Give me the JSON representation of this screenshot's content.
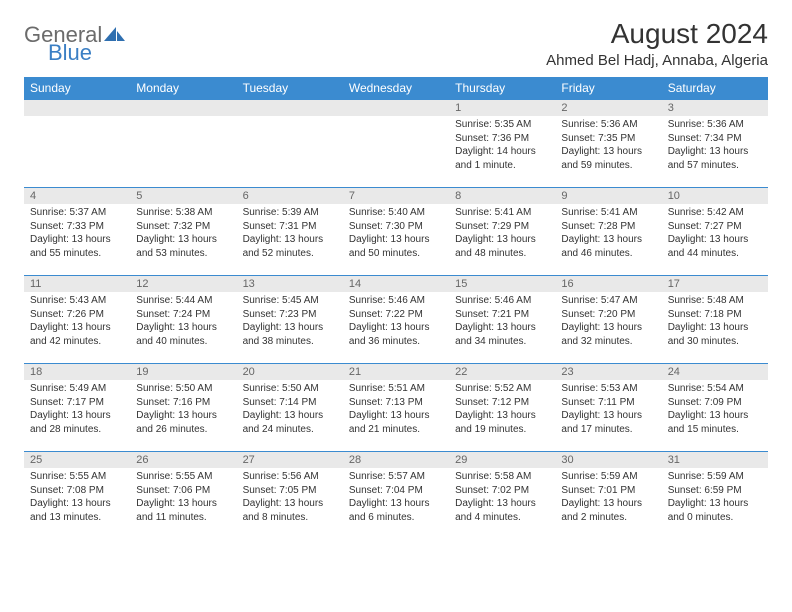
{
  "logo": {
    "text1": "General",
    "text2": "Blue"
  },
  "header": {
    "month_title": "August 2024",
    "location": "Ahmed Bel Hadj, Annaba, Algeria"
  },
  "colors": {
    "header_bg": "#3b8bd0",
    "header_text": "#ffffff",
    "daynum_bg": "#e9e9e9",
    "daynum_text": "#666666",
    "cell_border": "#3b8bd0",
    "logo_gray": "#6b6b6b",
    "logo_blue": "#3b7fc4"
  },
  "weekdays": [
    "Sunday",
    "Monday",
    "Tuesday",
    "Wednesday",
    "Thursday",
    "Friday",
    "Saturday"
  ],
  "days": [
    {
      "n": 1,
      "sunrise": "Sunrise: 5:35 AM",
      "sunset": "Sunset: 7:36 PM",
      "daylight": "Daylight: 14 hours and 1 minute."
    },
    {
      "n": 2,
      "sunrise": "Sunrise: 5:36 AM",
      "sunset": "Sunset: 7:35 PM",
      "daylight": "Daylight: 13 hours and 59 minutes."
    },
    {
      "n": 3,
      "sunrise": "Sunrise: 5:36 AM",
      "sunset": "Sunset: 7:34 PM",
      "daylight": "Daylight: 13 hours and 57 minutes."
    },
    {
      "n": 4,
      "sunrise": "Sunrise: 5:37 AM",
      "sunset": "Sunset: 7:33 PM",
      "daylight": "Daylight: 13 hours and 55 minutes."
    },
    {
      "n": 5,
      "sunrise": "Sunrise: 5:38 AM",
      "sunset": "Sunset: 7:32 PM",
      "daylight": "Daylight: 13 hours and 53 minutes."
    },
    {
      "n": 6,
      "sunrise": "Sunrise: 5:39 AM",
      "sunset": "Sunset: 7:31 PM",
      "daylight": "Daylight: 13 hours and 52 minutes."
    },
    {
      "n": 7,
      "sunrise": "Sunrise: 5:40 AM",
      "sunset": "Sunset: 7:30 PM",
      "daylight": "Daylight: 13 hours and 50 minutes."
    },
    {
      "n": 8,
      "sunrise": "Sunrise: 5:41 AM",
      "sunset": "Sunset: 7:29 PM",
      "daylight": "Daylight: 13 hours and 48 minutes."
    },
    {
      "n": 9,
      "sunrise": "Sunrise: 5:41 AM",
      "sunset": "Sunset: 7:28 PM",
      "daylight": "Daylight: 13 hours and 46 minutes."
    },
    {
      "n": 10,
      "sunrise": "Sunrise: 5:42 AM",
      "sunset": "Sunset: 7:27 PM",
      "daylight": "Daylight: 13 hours and 44 minutes."
    },
    {
      "n": 11,
      "sunrise": "Sunrise: 5:43 AM",
      "sunset": "Sunset: 7:26 PM",
      "daylight": "Daylight: 13 hours and 42 minutes."
    },
    {
      "n": 12,
      "sunrise": "Sunrise: 5:44 AM",
      "sunset": "Sunset: 7:24 PM",
      "daylight": "Daylight: 13 hours and 40 minutes."
    },
    {
      "n": 13,
      "sunrise": "Sunrise: 5:45 AM",
      "sunset": "Sunset: 7:23 PM",
      "daylight": "Daylight: 13 hours and 38 minutes."
    },
    {
      "n": 14,
      "sunrise": "Sunrise: 5:46 AM",
      "sunset": "Sunset: 7:22 PM",
      "daylight": "Daylight: 13 hours and 36 minutes."
    },
    {
      "n": 15,
      "sunrise": "Sunrise: 5:46 AM",
      "sunset": "Sunset: 7:21 PM",
      "daylight": "Daylight: 13 hours and 34 minutes."
    },
    {
      "n": 16,
      "sunrise": "Sunrise: 5:47 AM",
      "sunset": "Sunset: 7:20 PM",
      "daylight": "Daylight: 13 hours and 32 minutes."
    },
    {
      "n": 17,
      "sunrise": "Sunrise: 5:48 AM",
      "sunset": "Sunset: 7:18 PM",
      "daylight": "Daylight: 13 hours and 30 minutes."
    },
    {
      "n": 18,
      "sunrise": "Sunrise: 5:49 AM",
      "sunset": "Sunset: 7:17 PM",
      "daylight": "Daylight: 13 hours and 28 minutes."
    },
    {
      "n": 19,
      "sunrise": "Sunrise: 5:50 AM",
      "sunset": "Sunset: 7:16 PM",
      "daylight": "Daylight: 13 hours and 26 minutes."
    },
    {
      "n": 20,
      "sunrise": "Sunrise: 5:50 AM",
      "sunset": "Sunset: 7:14 PM",
      "daylight": "Daylight: 13 hours and 24 minutes."
    },
    {
      "n": 21,
      "sunrise": "Sunrise: 5:51 AM",
      "sunset": "Sunset: 7:13 PM",
      "daylight": "Daylight: 13 hours and 21 minutes."
    },
    {
      "n": 22,
      "sunrise": "Sunrise: 5:52 AM",
      "sunset": "Sunset: 7:12 PM",
      "daylight": "Daylight: 13 hours and 19 minutes."
    },
    {
      "n": 23,
      "sunrise": "Sunrise: 5:53 AM",
      "sunset": "Sunset: 7:11 PM",
      "daylight": "Daylight: 13 hours and 17 minutes."
    },
    {
      "n": 24,
      "sunrise": "Sunrise: 5:54 AM",
      "sunset": "Sunset: 7:09 PM",
      "daylight": "Daylight: 13 hours and 15 minutes."
    },
    {
      "n": 25,
      "sunrise": "Sunrise: 5:55 AM",
      "sunset": "Sunset: 7:08 PM",
      "daylight": "Daylight: 13 hours and 13 minutes."
    },
    {
      "n": 26,
      "sunrise": "Sunrise: 5:55 AM",
      "sunset": "Sunset: 7:06 PM",
      "daylight": "Daylight: 13 hours and 11 minutes."
    },
    {
      "n": 27,
      "sunrise": "Sunrise: 5:56 AM",
      "sunset": "Sunset: 7:05 PM",
      "daylight": "Daylight: 13 hours and 8 minutes."
    },
    {
      "n": 28,
      "sunrise": "Sunrise: 5:57 AM",
      "sunset": "Sunset: 7:04 PM",
      "daylight": "Daylight: 13 hours and 6 minutes."
    },
    {
      "n": 29,
      "sunrise": "Sunrise: 5:58 AM",
      "sunset": "Sunset: 7:02 PM",
      "daylight": "Daylight: 13 hours and 4 minutes."
    },
    {
      "n": 30,
      "sunrise": "Sunrise: 5:59 AM",
      "sunset": "Sunset: 7:01 PM",
      "daylight": "Daylight: 13 hours and 2 minutes."
    },
    {
      "n": 31,
      "sunrise": "Sunrise: 5:59 AM",
      "sunset": "Sunset: 6:59 PM",
      "daylight": "Daylight: 13 hours and 0 minutes."
    }
  ],
  "layout": {
    "leading_blanks": 4,
    "weeks": 5,
    "columns": 7
  }
}
